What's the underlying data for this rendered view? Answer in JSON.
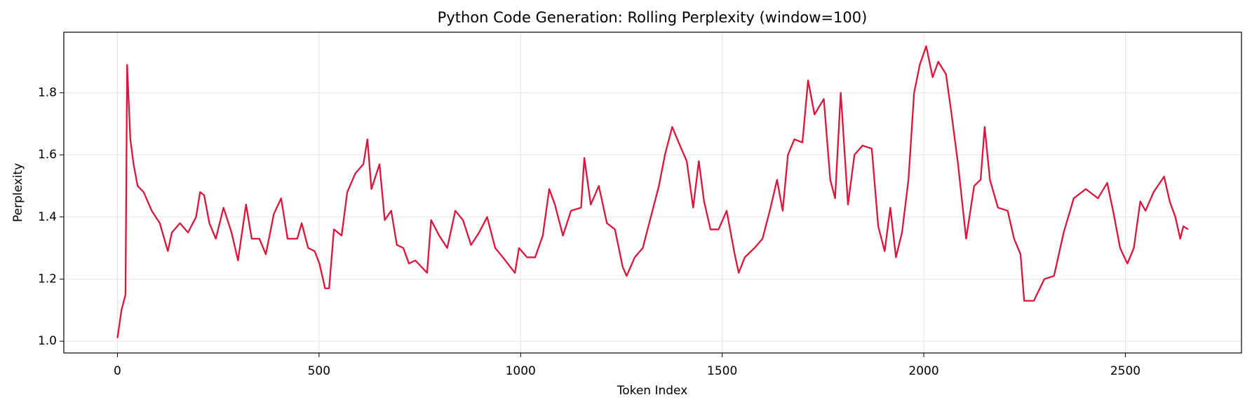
{
  "chart_data": {
    "type": "line",
    "title": "Python Code Generation: Rolling Perplexity (window=100)",
    "x_label": "Token Index",
    "y_label": "Perplexity",
    "x": [
      0,
      10,
      20,
      24,
      32,
      40,
      50,
      65,
      85,
      105,
      125,
      135,
      155,
      175,
      195,
      205,
      215,
      228,
      244,
      263,
      283,
      299,
      319,
      333,
      352,
      368,
      388,
      406,
      422,
      446,
      457,
      473,
      489,
      501,
      515,
      525,
      537,
      556,
      570,
      590,
      610,
      620,
      630,
      650,
      663,
      679,
      693,
      709,
      723,
      739,
      768,
      778,
      798,
      818,
      838,
      857,
      877,
      897,
      917,
      937,
      956,
      986,
      996,
      1016,
      1036,
      1055,
      1071,
      1085,
      1105,
      1125,
      1150,
      1158,
      1174,
      1194,
      1214,
      1234,
      1253,
      1263,
      1283,
      1303,
      1323,
      1343,
      1358,
      1376,
      1392,
      1412,
      1428,
      1442,
      1455,
      1471,
      1491,
      1511,
      1531,
      1541,
      1556,
      1580,
      1600,
      1620,
      1636,
      1650,
      1663,
      1679,
      1699,
      1713,
      1729,
      1752,
      1768,
      1780,
      1794,
      1812,
      1828,
      1848,
      1871,
      1887,
      1903,
      1917,
      1931,
      1946,
      1962,
      1976,
      1990,
      2006,
      2022,
      2036,
      2055,
      2069,
      2085,
      2105,
      2125,
      2141,
      2151,
      2164,
      2184,
      2208,
      2224,
      2240,
      2249,
      2273,
      2299,
      2323,
      2347,
      2372,
      2402,
      2432,
      2455,
      2471,
      2487,
      2505,
      2521,
      2537,
      2550,
      2570,
      2596,
      2610,
      2624,
      2636,
      2644,
      2656
    ],
    "series": [
      {
        "name": "Rolling Perplexity",
        "color": "#dc143c",
        "values": [
          1.01,
          1.1,
          1.15,
          1.89,
          1.65,
          1.57,
          1.5,
          1.48,
          1.42,
          1.38,
          1.29,
          1.35,
          1.38,
          1.35,
          1.4,
          1.48,
          1.47,
          1.38,
          1.33,
          1.43,
          1.35,
          1.26,
          1.44,
          1.33,
          1.33,
          1.28,
          1.41,
          1.46,
          1.33,
          1.33,
          1.38,
          1.3,
          1.29,
          1.25,
          1.17,
          1.17,
          1.36,
          1.34,
          1.48,
          1.54,
          1.57,
          1.65,
          1.49,
          1.57,
          1.39,
          1.42,
          1.31,
          1.3,
          1.25,
          1.26,
          1.22,
          1.39,
          1.34,
          1.3,
          1.42,
          1.39,
          1.31,
          1.35,
          1.4,
          1.3,
          1.27,
          1.22,
          1.3,
          1.27,
          1.27,
          1.34,
          1.49,
          1.44,
          1.34,
          1.42,
          1.43,
          1.59,
          1.44,
          1.5,
          1.38,
          1.36,
          1.24,
          1.21,
          1.27,
          1.3,
          1.4,
          1.5,
          1.6,
          1.69,
          1.64,
          1.58,
          1.43,
          1.58,
          1.45,
          1.36,
          1.36,
          1.42,
          1.28,
          1.22,
          1.27,
          1.3,
          1.33,
          1.43,
          1.52,
          1.42,
          1.6,
          1.65,
          1.64,
          1.84,
          1.73,
          1.78,
          1.52,
          1.46,
          1.8,
          1.44,
          1.6,
          1.63,
          1.62,
          1.37,
          1.29,
          1.43,
          1.27,
          1.35,
          1.52,
          1.8,
          1.89,
          1.95,
          1.85,
          1.9,
          1.86,
          1.73,
          1.57,
          1.33,
          1.5,
          1.52,
          1.69,
          1.52,
          1.43,
          1.42,
          1.33,
          1.28,
          1.13,
          1.13,
          1.2,
          1.21,
          1.35,
          1.46,
          1.49,
          1.46,
          1.51,
          1.41,
          1.3,
          1.25,
          1.3,
          1.45,
          1.42,
          1.48,
          1.53,
          1.45,
          1.4,
          1.33,
          1.37,
          1.36
        ]
      }
    ],
    "xlim": [
      -133,
      2788
    ],
    "ylim": [
      0.962,
      1.995
    ],
    "xticks": [
      0,
      500,
      1000,
      1500,
      2000,
      2500
    ],
    "yticks": [
      {
        "value": 1,
        "label": "1.0"
      },
      1.2,
      1.4,
      1.6,
      1.8
    ],
    "grid": true
  }
}
